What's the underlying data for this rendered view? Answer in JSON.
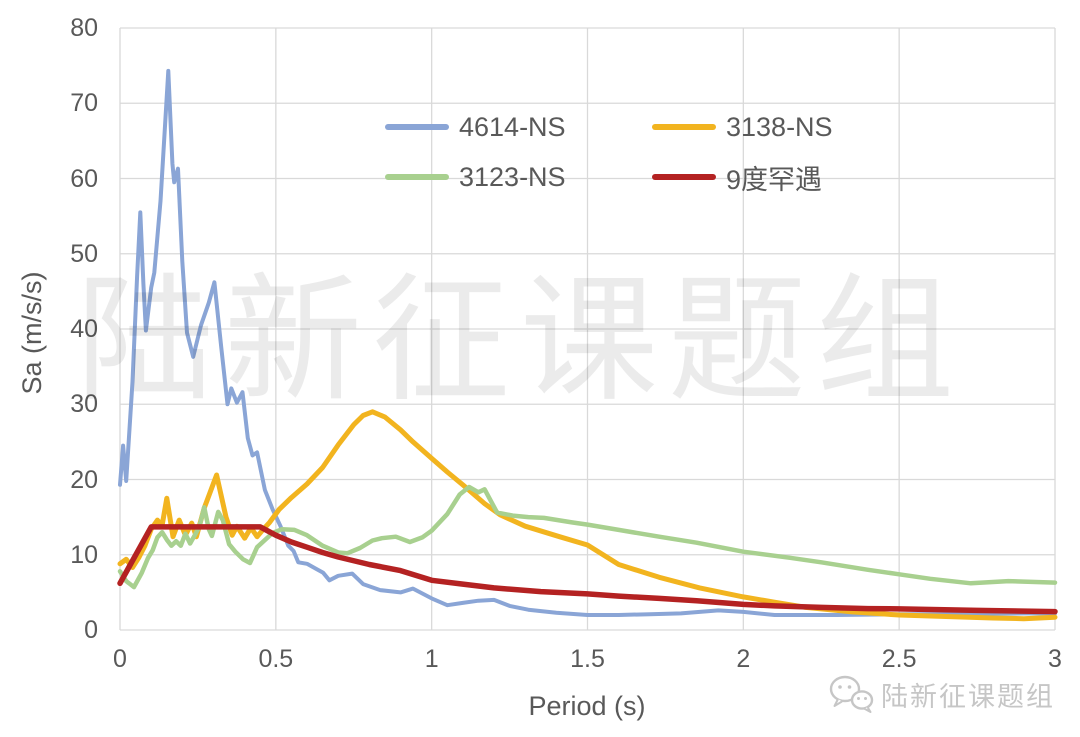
{
  "watermark_center": "陆新征课题组",
  "watermark_corner": {
    "icon": "wechat-icon",
    "text": "陆新征课题组"
  },
  "colors": {
    "grid": "#d9d9d9",
    "axis_text": "#595959",
    "series_blue": "#8aa5d6",
    "series_gold": "#f2b41f",
    "series_green": "#a8d08f",
    "series_red": "#b42222"
  },
  "chart_data": {
    "type": "line",
    "title": "",
    "xlabel": "Period (s)",
    "ylabel": "Sa (m/s/s)",
    "xlim": [
      0,
      3
    ],
    "ylim": [
      0,
      80
    ],
    "x_ticks": [
      0,
      0.5,
      1,
      1.5,
      2,
      2.5,
      3
    ],
    "x_tick_labels": [
      "0",
      "0.5",
      "1",
      "1.5",
      "2",
      "2.5",
      "3"
    ],
    "y_ticks": [
      0,
      10,
      20,
      30,
      40,
      50,
      60,
      70,
      80
    ],
    "y_tick_labels": [
      "0",
      "10",
      "20",
      "30",
      "40",
      "50",
      "60",
      "70",
      "80"
    ],
    "grid": true,
    "grid_color": "#d9d9d9",
    "legend_position": "inside-top",
    "series": [
      {
        "name": "4614-NS",
        "color": "#8aa5d6",
        "width": 4,
        "points": [
          [
            0,
            19.3
          ],
          [
            0.01,
            24.5
          ],
          [
            0.02,
            19.8
          ],
          [
            0.04,
            33
          ],
          [
            0.055,
            47
          ],
          [
            0.065,
            55.5
          ],
          [
            0.075,
            46
          ],
          [
            0.083,
            39.8
          ],
          [
            0.1,
            45.5
          ],
          [
            0.11,
            47.5
          ],
          [
            0.13,
            57
          ],
          [
            0.155,
            74.3
          ],
          [
            0.168,
            62
          ],
          [
            0.174,
            59.5
          ],
          [
            0.186,
            61.3
          ],
          [
            0.2,
            49
          ],
          [
            0.215,
            39.5
          ],
          [
            0.235,
            36.3
          ],
          [
            0.26,
            40.5
          ],
          [
            0.285,
            43.5
          ],
          [
            0.303,
            46.2
          ],
          [
            0.325,
            37.5
          ],
          [
            0.345,
            30
          ],
          [
            0.357,
            32.1
          ],
          [
            0.375,
            30.2
          ],
          [
            0.393,
            31.6
          ],
          [
            0.41,
            25.5
          ],
          [
            0.425,
            23.2
          ],
          [
            0.44,
            23.6
          ],
          [
            0.465,
            18.6
          ],
          [
            0.49,
            16
          ],
          [
            0.515,
            13.8
          ],
          [
            0.54,
            11.2
          ],
          [
            0.557,
            10.5
          ],
          [
            0.572,
            9
          ],
          [
            0.6,
            8.8
          ],
          [
            0.63,
            8.1
          ],
          [
            0.652,
            7.6
          ],
          [
            0.672,
            6.6
          ],
          [
            0.7,
            7.2
          ],
          [
            0.745,
            7.5
          ],
          [
            0.78,
            6.1
          ],
          [
            0.835,
            5.3
          ],
          [
            0.9,
            5
          ],
          [
            0.94,
            5.5
          ],
          [
            1,
            4.2
          ],
          [
            1.05,
            3.3
          ],
          [
            1.1,
            3.6
          ],
          [
            1.15,
            3.9
          ],
          [
            1.2,
            4
          ],
          [
            1.25,
            3.2
          ],
          [
            1.31,
            2.7
          ],
          [
            1.4,
            2.3
          ],
          [
            1.5,
            2
          ],
          [
            1.6,
            2
          ],
          [
            1.7,
            2.1
          ],
          [
            1.8,
            2.2
          ],
          [
            1.92,
            2.6
          ],
          [
            2,
            2.4
          ],
          [
            2.1,
            2
          ],
          [
            2.3,
            2
          ],
          [
            2.5,
            2.1
          ],
          [
            2.7,
            2.1
          ],
          [
            2.9,
            2.2
          ],
          [
            3,
            2.2
          ]
        ]
      },
      {
        "name": "3138-NS",
        "color": "#f2b41f",
        "width": 5,
        "points": [
          [
            0,
            8.8
          ],
          [
            0.02,
            9.4
          ],
          [
            0.04,
            8.3
          ],
          [
            0.06,
            9.6
          ],
          [
            0.08,
            11.2
          ],
          [
            0.1,
            13.4
          ],
          [
            0.12,
            14.6
          ],
          [
            0.135,
            13.9
          ],
          [
            0.15,
            17.5
          ],
          [
            0.17,
            12.4
          ],
          [
            0.19,
            14.6
          ],
          [
            0.21,
            12.6
          ],
          [
            0.23,
            14.2
          ],
          [
            0.245,
            12.4
          ],
          [
            0.27,
            16.2
          ],
          [
            0.31,
            20.6
          ],
          [
            0.34,
            15
          ],
          [
            0.36,
            12.6
          ],
          [
            0.375,
            13.8
          ],
          [
            0.4,
            12.2
          ],
          [
            0.42,
            13.6
          ],
          [
            0.44,
            12.4
          ],
          [
            0.46,
            13.4
          ],
          [
            0.48,
            14.3
          ],
          [
            0.51,
            16
          ],
          [
            0.55,
            17.6
          ],
          [
            0.6,
            19.4
          ],
          [
            0.65,
            21.6
          ],
          [
            0.7,
            24.6
          ],
          [
            0.75,
            27.3
          ],
          [
            0.78,
            28.5
          ],
          [
            0.81,
            29
          ],
          [
            0.85,
            28.3
          ],
          [
            0.9,
            26.6
          ],
          [
            0.94,
            25
          ],
          [
            1,
            22.8
          ],
          [
            1.05,
            21
          ],
          [
            1.1,
            19.3
          ],
          [
            1.17,
            16.8
          ],
          [
            1.22,
            15.3
          ],
          [
            1.3,
            13.8
          ],
          [
            1.41,
            12.4
          ],
          [
            1.5,
            11.3
          ],
          [
            1.6,
            8.7
          ],
          [
            1.73,
            7
          ],
          [
            1.86,
            5.6
          ],
          [
            2,
            4.4
          ],
          [
            2.1,
            3.7
          ],
          [
            2.2,
            3
          ],
          [
            2.35,
            2.4
          ],
          [
            2.5,
            2
          ],
          [
            2.65,
            1.8
          ],
          [
            2.8,
            1.6
          ],
          [
            2.9,
            1.5
          ],
          [
            3,
            1.7
          ]
        ]
      },
      {
        "name": "3123-NS",
        "color": "#a8d08f",
        "width": 4.5,
        "points": [
          [
            0,
            7.8
          ],
          [
            0.02,
            6.5
          ],
          [
            0.045,
            5.7
          ],
          [
            0.07,
            7.6
          ],
          [
            0.09,
            9.6
          ],
          [
            0.105,
            10.6
          ],
          [
            0.12,
            12.3
          ],
          [
            0.135,
            13
          ],
          [
            0.15,
            12
          ],
          [
            0.165,
            11.2
          ],
          [
            0.18,
            11.8
          ],
          [
            0.195,
            11.2
          ],
          [
            0.21,
            12.8
          ],
          [
            0.225,
            11.5
          ],
          [
            0.24,
            12.6
          ],
          [
            0.255,
            13.8
          ],
          [
            0.27,
            16.3
          ],
          [
            0.285,
            13.4
          ],
          [
            0.295,
            12.5
          ],
          [
            0.315,
            15.7
          ],
          [
            0.33,
            14.6
          ],
          [
            0.35,
            11.4
          ],
          [
            0.37,
            10.4
          ],
          [
            0.395,
            9.4
          ],
          [
            0.417,
            8.9
          ],
          [
            0.44,
            11
          ],
          [
            0.49,
            12.9
          ],
          [
            0.52,
            13.4
          ],
          [
            0.56,
            13.3
          ],
          [
            0.6,
            12.6
          ],
          [
            0.65,
            11.2
          ],
          [
            0.7,
            10.3
          ],
          [
            0.73,
            10.2
          ],
          [
            0.77,
            10.9
          ],
          [
            0.81,
            11.9
          ],
          [
            0.84,
            12.2
          ],
          [
            0.885,
            12.4
          ],
          [
            0.93,
            11.7
          ],
          [
            0.97,
            12.3
          ],
          [
            1,
            13.2
          ],
          [
            1.05,
            15.4
          ],
          [
            1.09,
            18
          ],
          [
            1.12,
            19
          ],
          [
            1.15,
            18.3
          ],
          [
            1.17,
            18.7
          ],
          [
            1.21,
            15.6
          ],
          [
            1.26,
            15.2
          ],
          [
            1.31,
            15
          ],
          [
            1.36,
            14.9
          ],
          [
            1.45,
            14.3
          ],
          [
            1.5,
            14
          ],
          [
            1.6,
            13.3
          ],
          [
            1.73,
            12.4
          ],
          [
            1.85,
            11.6
          ],
          [
            2,
            10.4
          ],
          [
            2.15,
            9.6
          ],
          [
            2.25,
            9
          ],
          [
            2.4,
            8
          ],
          [
            2.5,
            7.4
          ],
          [
            2.6,
            6.8
          ],
          [
            2.73,
            6.2
          ],
          [
            2.85,
            6.5
          ],
          [
            3,
            6.3
          ]
        ]
      },
      {
        "name": "9度罕遇",
        "color": "#b42222",
        "width": 5.5,
        "points": [
          [
            0,
            6.2
          ],
          [
            0.1,
            13.7
          ],
          [
            0.45,
            13.7
          ],
          [
            0.5,
            12.6
          ],
          [
            0.55,
            11.7
          ],
          [
            0.6,
            11
          ],
          [
            0.65,
            10.3
          ],
          [
            0.7,
            9.7
          ],
          [
            0.8,
            8.7
          ],
          [
            0.9,
            7.9
          ],
          [
            1,
            6.6
          ],
          [
            1.1,
            6.1
          ],
          [
            1.2,
            5.6
          ],
          [
            1.35,
            5.1
          ],
          [
            1.5,
            4.8
          ],
          [
            1.6,
            4.5
          ],
          [
            1.73,
            4.2
          ],
          [
            1.85,
            3.9
          ],
          [
            2,
            3.4
          ],
          [
            2.1,
            3.2
          ],
          [
            2.25,
            3
          ],
          [
            2.4,
            2.85
          ],
          [
            2.5,
            2.8
          ],
          [
            2.75,
            2.6
          ],
          [
            3,
            2.45
          ]
        ]
      }
    ]
  }
}
